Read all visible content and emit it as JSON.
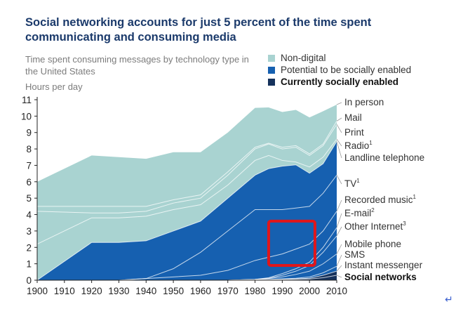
{
  "chart_data": {
    "type": "area",
    "stacked": true,
    "title": "Social networking accounts for just 5 percent of the time spent communicating and consuming media",
    "subtitle": "Time spent consuming messages by technology type in the United States",
    "ylabel": "Hours per day",
    "x": [
      1900,
      1920,
      1930,
      1940,
      1950,
      1960,
      1970,
      1980,
      1985,
      1990,
      1995,
      2000,
      2005,
      2010
    ],
    "x_ticks": [
      "1900",
      "1910",
      "1920",
      "1930",
      "1940",
      "1950",
      "1960",
      "1970",
      "1980",
      "1990",
      "2000",
      "2010"
    ],
    "y_ticks": [
      "0",
      "1",
      "2",
      "3",
      "4",
      "5",
      "6",
      "7",
      "8",
      "9",
      "10",
      "11"
    ],
    "ylim": [
      0,
      11
    ],
    "xlim": [
      1900,
      2010
    ],
    "legend": [
      {
        "name": "Non-digital",
        "color": "#a9d3d1"
      },
      {
        "name": "Potential to be socially enabled",
        "color": "#1660b0"
      },
      {
        "name": "Currently socially enabled",
        "color": "#16325c"
      }
    ],
    "category_totals": {
      "currently_socially_enabled": [
        0,
        0,
        0,
        0,
        0,
        0,
        0,
        0.02,
        0.03,
        0.05,
        0.08,
        0.12,
        0.3,
        0.55
      ],
      "potential_to_be_socially_enabled": [
        0,
        2.3,
        2.3,
        2.4,
        3.0,
        3.6,
        5.0,
        6.4,
        6.8,
        6.9,
        6.95,
        6.4,
        6.8,
        7.9
      ],
      "non_digital_and_other": [
        6.0,
        5.3,
        5.2,
        5.0,
        4.8,
        4.2,
        4.0,
        4.1,
        3.7,
        3.3,
        3.35,
        3.4,
        3.2,
        2.25
      ]
    },
    "stack_boundaries_top": {
      "Social networks": [
        0,
        0,
        0,
        0,
        0,
        0,
        0,
        0.01,
        0.02,
        0.03,
        0.05,
        0.07,
        0.15,
        0.3
      ],
      "Instant messenger": [
        0,
        0,
        0,
        0,
        0,
        0,
        0,
        0.02,
        0.03,
        0.05,
        0.08,
        0.12,
        0.3,
        0.55
      ],
      "SMS": [
        0,
        0,
        0,
        0,
        0,
        0,
        0,
        0.03,
        0.05,
        0.08,
        0.12,
        0.2,
        0.45,
        0.85
      ],
      "Mobile phone": [
        0,
        0,
        0,
        0,
        0,
        0,
        0,
        0.05,
        0.1,
        0.2,
        0.35,
        0.55,
        1.0,
        1.6
      ],
      "Other Internet": [
        0,
        0,
        0,
        0,
        0,
        0,
        0,
        0.05,
        0.12,
        0.3,
        0.55,
        0.9,
        1.7,
        2.7
      ],
      "E-mail": [
        0,
        0,
        0,
        0,
        0,
        0,
        0,
        0.05,
        0.15,
        0.4,
        0.7,
        1.1,
        2.0,
        3.2
      ],
      "Recorded music": [
        0,
        0,
        0,
        0.1,
        0.2,
        0.3,
        0.6,
        1.2,
        1.4,
        1.6,
        1.9,
        2.2,
        3.0,
        4.2
      ],
      "TV": [
        0,
        0,
        0,
        0.1,
        0.7,
        1.7,
        3.0,
        4.3,
        4.3,
        4.3,
        4.4,
        4.5,
        5.3,
        6.4
      ],
      "Landline telephone": [
        0,
        2.3,
        2.3,
        2.4,
        3.0,
        3.6,
        5.0,
        6.4,
        6.8,
        6.95,
        7.03,
        6.52,
        7.1,
        8.45
      ],
      "Radio": [
        2.2,
        3.8,
        3.8,
        3.9,
        4.3,
        4.6,
        5.8,
        7.3,
        7.6,
        7.3,
        7.2,
        6.9,
        7.5,
        8.6
      ],
      "Print": [
        4.2,
        4.1,
        4.1,
        4.2,
        4.7,
        5.0,
        6.4,
        8.0,
        8.3,
        8.0,
        8.1,
        7.6,
        8.2,
        9.5
      ],
      "Mail": [
        4.5,
        4.5,
        4.5,
        4.5,
        4.9,
        5.2,
        6.6,
        8.1,
        8.35,
        8.1,
        8.2,
        7.7,
        8.3,
        9.7
      ],
      "In person": [
        6.0,
        7.6,
        7.5,
        7.4,
        7.8,
        7.8,
        9.0,
        10.5,
        10.53,
        10.25,
        10.38,
        9.92,
        10.3,
        10.7
      ]
    },
    "series_labels": [
      "In person",
      "Mail",
      "Print",
      "Radio",
      "Landline telephone",
      "TV",
      "Recorded music",
      "E-mail",
      "Other Internet",
      "Mobile phone",
      "SMS",
      "Instant messenger",
      "Social networks"
    ],
    "series_label_superscripts": {
      "Radio": "1",
      "TV": "1",
      "Recorded music": "1",
      "E-mail": "2",
      "Other Internet": "3"
    },
    "bold_labels": [
      "Social networks"
    ],
    "highlight_box": {
      "x_range": [
        1985,
        2002
      ],
      "y_range": [
        0.9,
        3.6
      ],
      "color": "#e0161b"
    }
  },
  "return_glyph": "↵"
}
